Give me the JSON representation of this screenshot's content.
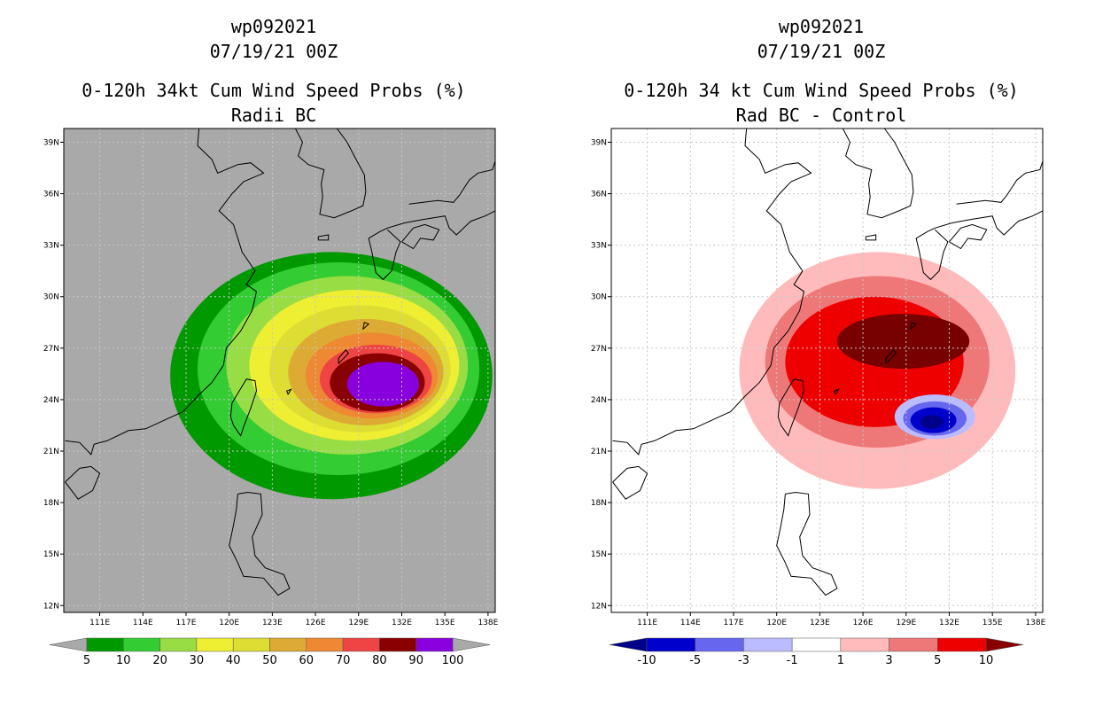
{
  "panels": [
    {
      "title_lines": [
        "wp092021",
        "07/19/21 00Z",
        "0-120h 34kt Cum Wind Speed Probs (%)",
        "Radii BC"
      ],
      "background": "#a9a9a9",
      "colorbar": {
        "labels": [
          "5",
          "10",
          "20",
          "30",
          "40",
          "50",
          "60",
          "70",
          "80",
          "90",
          "100"
        ],
        "colors": [
          "#009900",
          "#33cc33",
          "#99dd44",
          "#eeee33",
          "#dddd33",
          "#ddaa33",
          "#ee8833",
          "#ee4444",
          "#880000",
          "#8800dd"
        ],
        "left_arrow": "#a9a9a9",
        "right_arrow": "#a9a9a9"
      }
    },
    {
      "title_lines": [
        "wp092021",
        "07/19/21 00Z",
        "0-120h 34 kt Cum Wind Speed Probs (%)",
        "Rad BC - Control"
      ],
      "background": "#ffffff",
      "colorbar": {
        "labels": [
          "-10",
          "-5",
          "-3",
          "-1",
          "1",
          "3",
          "5",
          "10"
        ],
        "colors": [
          "#0000cc",
          "#6666ee",
          "#bbbbff",
          "#ffffff",
          "#ffbbbb",
          "#ee7777",
          "#ee0000"
        ],
        "left_arrow": "#000088",
        "right_arrow": "#880000"
      }
    }
  ],
  "axes": {
    "lat_labels": [
      "39N",
      "36N",
      "33N",
      "30N",
      "27N",
      "24N",
      "21N",
      "18N",
      "15N",
      "12N"
    ],
    "lon_labels": [
      "111E",
      "114E",
      "117E",
      "120E",
      "123E",
      "126E",
      "129E",
      "132E",
      "135E",
      "138E"
    ]
  },
  "contours_left": [
    {
      "level": "5",
      "color": "#009900"
    },
    {
      "level": "10",
      "color": "#33cc33"
    },
    {
      "level": "20",
      "color": "#99dd44"
    },
    {
      "level": "30",
      "color": "#eeee33"
    },
    {
      "level": "40",
      "color": "#dddd33"
    },
    {
      "level": "50",
      "color": "#ddaa33"
    },
    {
      "level": "60",
      "color": "#ee8833"
    },
    {
      "level": "70",
      "color": "#ee4444"
    },
    {
      "level": "80",
      "color": "#880000"
    },
    {
      "level": "90",
      "color": "#8800dd"
    }
  ],
  "contours_right": [
    {
      "level": "1",
      "color": "#ffbbbb"
    },
    {
      "level": "3",
      "color": "#ee7777"
    },
    {
      "level": "5",
      "color": "#ee0000"
    },
    {
      "level": "10",
      "color": "#770000"
    },
    {
      "level": "-1",
      "color": "#bbbbff"
    },
    {
      "level": "-3",
      "color": "#6666ee"
    },
    {
      "level": "-5",
      "color": "#0000cc"
    },
    {
      "level": "-10",
      "color": "#000088"
    }
  ]
}
